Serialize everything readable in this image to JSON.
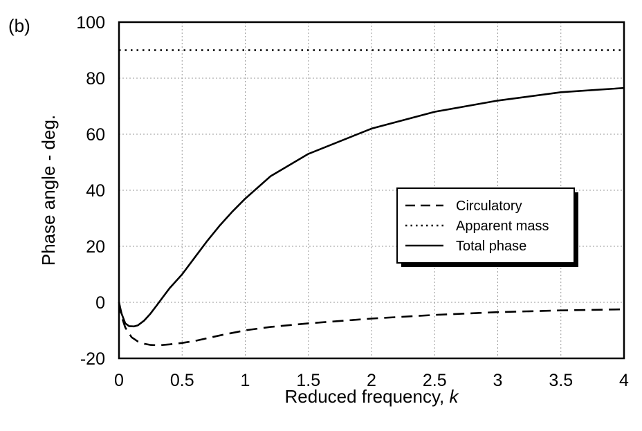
{
  "panel_label": "(b)",
  "chart_data": {
    "type": "line",
    "xlabel": "Reduced frequency, ",
    "xlabel_var": "k",
    "ylabel": "Phase angle - deg.",
    "xlim": [
      0,
      4
    ],
    "ylim": [
      -20,
      100
    ],
    "xticks": [
      0,
      0.5,
      1,
      1.5,
      2,
      2.5,
      3,
      3.5,
      4
    ],
    "xtick_labels": [
      "0",
      "0.5",
      "1",
      "1.5",
      "2",
      "2.5",
      "3",
      "3.5",
      "4"
    ],
    "yticks": [
      -20,
      0,
      20,
      40,
      60,
      80,
      100
    ],
    "ytick_labels": [
      "-20",
      "0",
      "20",
      "40",
      "60",
      "80",
      "100"
    ],
    "grid": true,
    "legend_position": "center-right",
    "series": [
      {
        "name": "Circulatory",
        "style": "dashed",
        "color": "#000000",
        "x": [
          0,
          0.02,
          0.05,
          0.1,
          0.15,
          0.2,
          0.25,
          0.3,
          0.35,
          0.4,
          0.5,
          0.6,
          0.7,
          0.8,
          1.0,
          1.2,
          1.5,
          2.0,
          2.5,
          3.0,
          3.5,
          4.0
        ],
        "y": [
          0,
          -5,
          -9,
          -12.5,
          -14,
          -14.8,
          -15.2,
          -15.3,
          -15.2,
          -15,
          -14.5,
          -13.8,
          -12.8,
          -11.8,
          -10,
          -8.8,
          -7.5,
          -5.8,
          -4.5,
          -3.5,
          -2.9,
          -2.5
        ]
      },
      {
        "name": "Apparent mass",
        "style": "dotted",
        "color": "#000000",
        "x": [
          0,
          4
        ],
        "y": [
          90,
          90
        ]
      },
      {
        "name": "Total phase",
        "style": "solid",
        "color": "#000000",
        "x": [
          0,
          0.02,
          0.05,
          0.08,
          0.12,
          0.15,
          0.2,
          0.25,
          0.3,
          0.35,
          0.4,
          0.5,
          0.6,
          0.7,
          0.8,
          0.9,
          1.0,
          1.2,
          1.5,
          2.0,
          2.5,
          3.0,
          3.5,
          4.0
        ],
        "y": [
          0,
          -4,
          -7.5,
          -8.5,
          -8.6,
          -8.2,
          -6.5,
          -4,
          -1,
          2,
          5,
          10,
          16,
          22,
          27.5,
          32.5,
          37,
          45,
          53,
          62,
          68,
          72,
          75,
          76.5
        ]
      }
    ]
  }
}
